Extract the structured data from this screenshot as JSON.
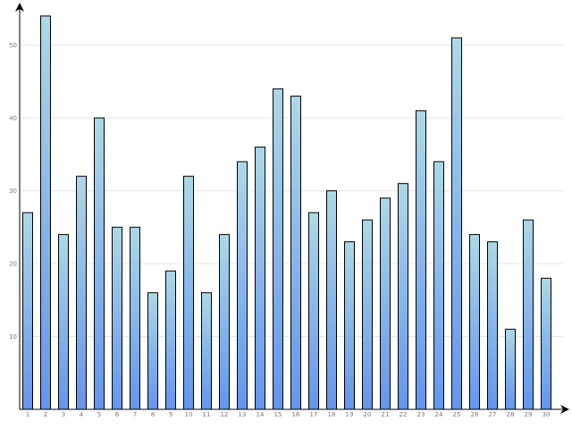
{
  "chart_data": {
    "type": "bar",
    "title": "",
    "xlabel": "",
    "ylabel": "",
    "categories": [
      "1",
      "2",
      "3",
      "4",
      "5",
      "6",
      "7",
      "8",
      "9",
      "10",
      "11",
      "12",
      "13",
      "14",
      "15",
      "16",
      "17",
      "18",
      "19",
      "20",
      "21",
      "22",
      "23",
      "24",
      "25",
      "26",
      "27",
      "28",
      "29",
      "30"
    ],
    "values": [
      27,
      54,
      24,
      32,
      40,
      25,
      25,
      16,
      19,
      32,
      16,
      24,
      34,
      36,
      44,
      43,
      27,
      30,
      23,
      26,
      29,
      31,
      41,
      34,
      51,
      24,
      23,
      11,
      26,
      18
    ],
    "ylim": [
      0,
      56
    ],
    "yticks": [
      10,
      20,
      30,
      40,
      50
    ],
    "ytick_labels": [
      "10",
      "20",
      "30",
      "40",
      "50"
    ],
    "grid": true,
    "legend": "none",
    "colors": {
      "bar_top": "#add8e6",
      "bar_bottom": "#6495ed",
      "bar_border": "#000000",
      "grid": "#e4e4e4",
      "axis": "#000000",
      "tick_text": "#777777"
    }
  }
}
